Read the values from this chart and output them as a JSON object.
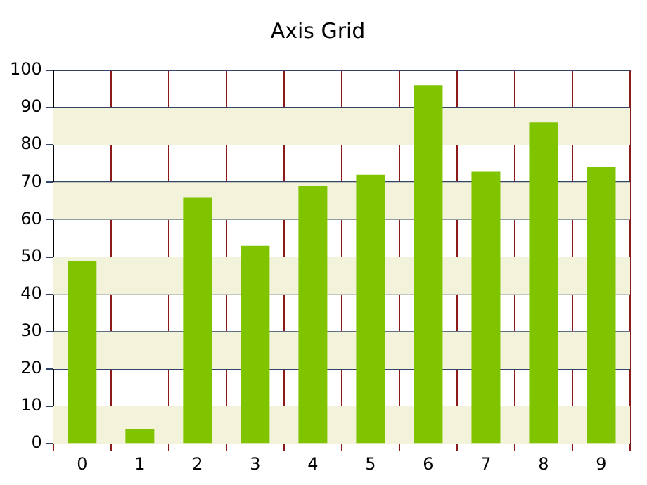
{
  "chart_data": {
    "type": "bar",
    "title": "Axis Grid",
    "categories": [
      "0",
      "1",
      "2",
      "3",
      "4",
      "5",
      "6",
      "7",
      "8",
      "9"
    ],
    "values": [
      49,
      4,
      66,
      53,
      69,
      72,
      96,
      73,
      86,
      74
    ],
    "color": "#80c400",
    "ylim": [
      0,
      100
    ],
    "yticks": [
      0,
      10,
      20,
      30,
      40,
      50,
      60,
      70,
      80,
      90,
      100
    ],
    "grid": true,
    "bands": [
      {
        "axis": "y",
        "from": 0,
        "to": 10,
        "color": "#f3f2da"
      },
      {
        "axis": "y",
        "from": 20,
        "to": 30,
        "color": "#f3f2da"
      },
      {
        "axis": "y",
        "from": 40,
        "to": 50,
        "color": "#f3f2da"
      },
      {
        "axis": "y",
        "from": 60,
        "to": 70,
        "color": "#f3f2da"
      },
      {
        "axis": "y",
        "from": 80,
        "to": 90,
        "color": "#f3f2da"
      }
    ]
  }
}
